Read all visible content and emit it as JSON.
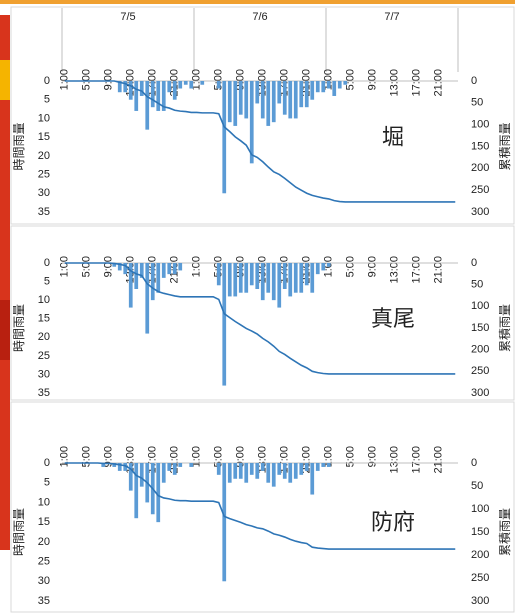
{
  "chart_data": [
    {
      "type": "bar_line",
      "dates": [
        "7/5",
        "7/6",
        "7/7"
      ],
      "annotation": "堀",
      "y_label": "時間雨量",
      "y2_label": "累積雨量",
      "categories": [
        "1:00",
        null,
        null,
        null,
        "5:00",
        null,
        null,
        null,
        "9:00",
        null,
        null,
        null,
        "13:00",
        null,
        null,
        null,
        "17:00",
        null,
        null,
        null,
        "21:00",
        null,
        null,
        null,
        "1:00",
        null,
        null,
        null,
        "5:00",
        null,
        null,
        null,
        "9:00",
        null,
        null,
        null,
        "13:00",
        null,
        null,
        null,
        "17:00",
        null,
        null,
        null,
        "21:00",
        null,
        null,
        null,
        "1:00",
        null,
        null,
        null,
        "5:00",
        null,
        null,
        null,
        "9:00",
        null,
        null,
        null,
        "13:00",
        null,
        null,
        null,
        "17:00",
        null,
        null,
        null,
        "21:00",
        null,
        null,
        null
      ],
      "ylim": [
        0,
        35
      ],
      "yticks": [
        0,
        5,
        10,
        15,
        20,
        25,
        30,
        35
      ],
      "y_reversed": true,
      "y2lim": [
        0,
        300
      ],
      "y2ticks": [
        0,
        50,
        100,
        150,
        200,
        250,
        300
      ],
      "y2_reversed": true,
      "series": [
        {
          "type": "bar",
          "color": "#5b9bd5",
          "values": [
            0,
            0,
            0,
            0,
            0,
            0,
            0,
            0,
            0,
            0,
            3,
            3,
            5,
            8,
            4,
            13,
            7,
            8,
            8,
            3,
            5,
            2,
            1,
            2,
            0,
            1,
            0,
            0,
            2,
            30,
            11,
            12,
            9,
            10,
            22,
            6,
            10,
            12,
            11,
            6,
            9,
            10,
            10,
            7,
            7,
            5,
            3,
            3,
            2,
            4,
            2,
            1,
            0,
            0,
            0,
            0,
            0,
            0,
            0,
            0,
            0,
            0,
            0,
            0,
            0,
            0,
            0,
            0,
            0,
            0,
            0,
            0
          ]
        },
        {
          "type": "line",
          "axis": "y2",
          "color": "#2e75b6",
          "values": [
            0,
            0,
            0,
            0,
            0,
            0,
            0,
            0,
            0,
            0,
            3,
            6,
            11,
            19,
            23,
            36,
            43,
            51,
            59,
            62,
            67,
            69,
            70,
            72,
            72,
            73,
            73,
            73,
            75,
            105,
            116,
            128,
            137,
            147,
            169,
            175,
            185,
            197,
            208,
            214,
            223,
            233,
            243,
            250,
            257,
            262,
            265,
            268,
            270,
            274,
            276,
            277,
            277,
            277,
            277,
            277,
            277,
            277,
            277,
            277,
            277,
            277,
            277,
            277,
            277,
            277,
            277,
            277,
            277,
            277,
            277,
            277
          ]
        }
      ]
    },
    {
      "type": "bar_line",
      "annotation": "真尾",
      "y_label": "時間雨量",
      "y2_label": "累積雨量",
      "categories": [
        "1:00",
        null,
        null,
        null,
        "5:00",
        null,
        null,
        null,
        "9:00",
        null,
        null,
        null,
        "13:00",
        null,
        null,
        null,
        "17:00",
        null,
        null,
        null,
        "21:00",
        null,
        null,
        null,
        "1:00",
        null,
        null,
        null,
        "5:00",
        null,
        null,
        null,
        "9:00",
        null,
        null,
        null,
        "13:00",
        null,
        null,
        null,
        "17:00",
        null,
        null,
        null,
        "21:00",
        null,
        null,
        null,
        "1:00",
        null,
        null,
        null,
        "5:00",
        null,
        null,
        null,
        "9:00",
        null,
        null,
        null,
        "13:00",
        null,
        null,
        null,
        "17:00",
        null,
        null,
        null,
        "21:00",
        null,
        null,
        null
      ],
      "ylim": [
        0,
        35
      ],
      "yticks": [
        0,
        5,
        10,
        15,
        20,
        25,
        30,
        35
      ],
      "y_reversed": true,
      "y2lim": [
        0,
        300
      ],
      "y2ticks": [
        0,
        50,
        100,
        150,
        200,
        250,
        300
      ],
      "y2_reversed": true,
      "series": [
        {
          "type": "bar",
          "color": "#5b9bd5",
          "values": [
            0,
            0,
            0,
            0,
            0,
            0,
            0,
            0,
            0,
            1,
            2,
            3,
            12,
            7,
            4,
            19,
            10,
            8,
            4,
            3,
            3,
            2,
            0,
            0,
            0,
            0,
            0,
            0,
            6,
            33,
            9,
            9,
            8,
            8,
            6,
            7,
            10,
            8,
            10,
            12,
            7,
            9,
            8,
            8,
            6,
            8,
            3,
            2,
            1,
            0,
            0,
            0,
            0,
            0,
            0,
            0,
            0,
            0,
            0,
            0,
            0,
            0,
            0,
            0,
            0,
            0,
            0,
            0,
            0,
            0,
            0,
            0
          ]
        },
        {
          "type": "line",
          "axis": "y2",
          "color": "#2e75b6",
          "values": [
            0,
            0,
            0,
            0,
            0,
            0,
            0,
            0,
            0,
            1,
            3,
            6,
            18,
            25,
            29,
            48,
            58,
            66,
            70,
            73,
            76,
            78,
            78,
            78,
            78,
            78,
            78,
            78,
            84,
            117,
            126,
            135,
            143,
            151,
            157,
            164,
            174,
            182,
            192,
            204,
            211,
            220,
            228,
            236,
            242,
            250,
            253,
            255,
            256,
            256,
            256,
            256,
            256,
            256,
            256,
            256,
            256,
            256,
            256,
            256,
            256,
            256,
            256,
            256,
            256,
            256,
            256,
            256,
            256,
            256,
            256,
            256
          ]
        }
      ]
    },
    {
      "type": "bar_line",
      "annotation": "防府",
      "y_label": "時間雨量",
      "y2_label": "累積雨量",
      "categories": [
        "1:00",
        null,
        null,
        null,
        "5:00",
        null,
        null,
        null,
        "9:00",
        null,
        null,
        null,
        "13:00",
        null,
        null,
        null,
        "17:00",
        null,
        null,
        null,
        "21:00",
        null,
        null,
        null,
        "1:00",
        null,
        null,
        null,
        "5:00",
        null,
        null,
        null,
        "9:00",
        null,
        null,
        null,
        "13:00",
        null,
        null,
        null,
        "17:00",
        null,
        null,
        null,
        "21:00",
        null,
        null,
        null,
        "1:00",
        null,
        null,
        null,
        "5:00",
        null,
        null,
        null,
        "9:00",
        null,
        null,
        null,
        "13:00",
        null,
        null,
        null,
        "17:00",
        null,
        null,
        null,
        "21:00",
        null,
        null,
        null
      ],
      "ylim": [
        0,
        35
      ],
      "yticks": [
        0,
        5,
        10,
        15,
        20,
        25,
        30,
        35
      ],
      "y_reversed": true,
      "y2lim": [
        0,
        300
      ],
      "y2ticks": [
        0,
        50,
        100,
        150,
        200,
        250,
        300
      ],
      "y2_reversed": true,
      "series": [
        {
          "type": "bar",
          "color": "#5b9bd5",
          "values": [
            0,
            0,
            0,
            0,
            0,
            0,
            0,
            1,
            0,
            1,
            2,
            2,
            7,
            14,
            6,
            10,
            13,
            15,
            5,
            2,
            3,
            1,
            0,
            1,
            0,
            0,
            0,
            0,
            3,
            30,
            5,
            4,
            4,
            5,
            3,
            4,
            2,
            5,
            6,
            3,
            4,
            5,
            4,
            3,
            2,
            8,
            2,
            1,
            1,
            0,
            0,
            0,
            0,
            0,
            0,
            0,
            0,
            0,
            0,
            0,
            0,
            0,
            0,
            0,
            0,
            0,
            0,
            0,
            0,
            0,
            0,
            0
          ]
        },
        {
          "type": "line",
          "axis": "y2",
          "color": "#2e75b6",
          "values": [
            0,
            0,
            0,
            0,
            0,
            0,
            0,
            1,
            1,
            2,
            4,
            6,
            13,
            27,
            33,
            43,
            56,
            71,
            76,
            78,
            81,
            82,
            82,
            83,
            83,
            83,
            83,
            83,
            86,
            116,
            121,
            125,
            129,
            134,
            137,
            141,
            143,
            148,
            154,
            157,
            161,
            166,
            170,
            173,
            175,
            183,
            185,
            186,
            187,
            187,
            187,
            187,
            187,
            187,
            187,
            187,
            187,
            187,
            187,
            187,
            187,
            187,
            187,
            187,
            187,
            187,
            187,
            187,
            187,
            187,
            187,
            187
          ]
        }
      ]
    }
  ]
}
